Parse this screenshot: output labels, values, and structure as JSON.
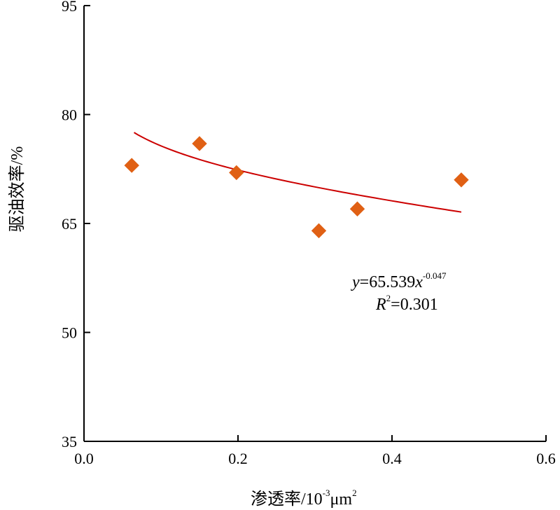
{
  "chart_data": {
    "type": "scatter",
    "title": "",
    "xlabel": "渗透率/10",
    "xlabel_exp": "-3",
    "xlabel_unit": "μm",
    "xlabel_unit_exp": "2",
    "ylabel": "驱油效率/%",
    "xlim": [
      0.0,
      0.6
    ],
    "ylim": [
      35,
      95
    ],
    "xticks": [
      "0.0",
      "0.2",
      "0.4",
      "0.6"
    ],
    "yticks": [
      "35",
      "50",
      "65",
      "80",
      "95"
    ],
    "grid": false,
    "legend": "none",
    "series": [
      {
        "marker": "diamond",
        "color": "#E06014",
        "points": [
          {
            "x": 0.062,
            "y": 73.0
          },
          {
            "x": 0.15,
            "y": 76.0
          },
          {
            "x": 0.198,
            "y": 72.0
          },
          {
            "x": 0.305,
            "y": 64.0
          },
          {
            "x": 0.355,
            "y": 67.0
          },
          {
            "x": 0.49,
            "y": 71.0
          }
        ]
      }
    ],
    "fit": {
      "type": "power",
      "coefficient": 65.539,
      "exponent": -0.047,
      "x_range": [
        0.065,
        0.49
      ],
      "color": "#CC0000",
      "equation_y": "y",
      "equation_mid": "=65.539",
      "equation_x": "x",
      "equation_exp": "-0.047",
      "r2_label": "R",
      "r2_exp": "2",
      "r2_value": "=0.301"
    }
  }
}
